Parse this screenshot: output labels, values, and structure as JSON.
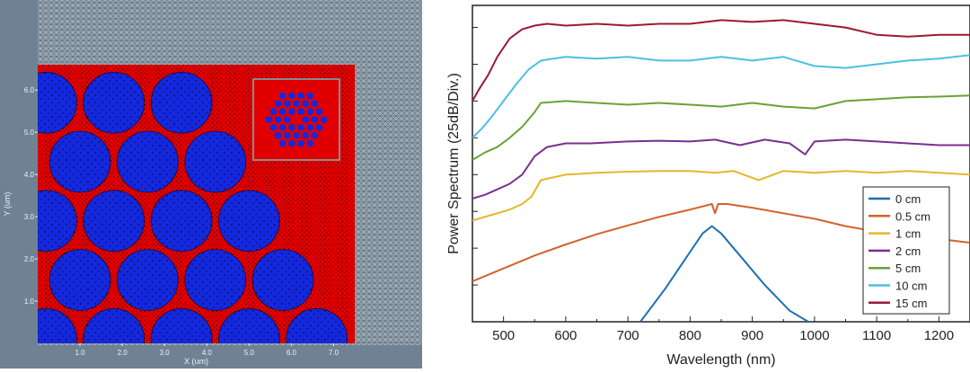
{
  "chart_data": [
    {
      "type": "heatmap",
      "xlabel": "X (um)",
      "ylabel": "Y (um)",
      "x_ticks": [
        "1.0",
        "2.0",
        "3.0",
        "4.0",
        "5.0",
        "6.0",
        "7.0"
      ],
      "y_ticks": [
        "1.0",
        "2.0",
        "3.0",
        "4.0",
        "5.0",
        "6.0"
      ],
      "xlim": [
        0,
        7.5
      ],
      "ylim": [
        0,
        6.6
      ],
      "colors": {
        "background": "#6f8294",
        "mesh": "#9aa8b4",
        "cladding": "#e00000",
        "core": "#1428e0",
        "inset_border": "#8a8a8a"
      },
      "cores_um": [
        {
          "x": 0.2,
          "y": 5.7
        },
        {
          "x": 1.8,
          "y": 5.7
        },
        {
          "x": 3.4,
          "y": 5.7
        },
        {
          "x": 1.0,
          "y": 4.3
        },
        {
          "x": 2.6,
          "y": 4.3
        },
        {
          "x": 4.2,
          "y": 4.3
        },
        {
          "x": 0.2,
          "y": 2.9
        },
        {
          "x": 1.8,
          "y": 2.9
        },
        {
          "x": 3.4,
          "y": 2.9
        },
        {
          "x": 5.0,
          "y": 2.9
        },
        {
          "x": 1.0,
          "y": 1.5
        },
        {
          "x": 2.6,
          "y": 1.5
        },
        {
          "x": 4.2,
          "y": 1.5
        },
        {
          "x": 5.8,
          "y": 1.5
        },
        {
          "x": 0.2,
          "y": 0.1
        },
        {
          "x": 1.8,
          "y": 0.1
        },
        {
          "x": 3.4,
          "y": 0.1
        },
        {
          "x": 5.0,
          "y": 0.1
        },
        {
          "x": 6.6,
          "y": 0.1
        }
      ],
      "core_radius_um": 0.72
    },
    {
      "type": "line",
      "xlabel": "Wavelength (nm)",
      "ylabel": "Power Spectrum (25dB/Div.)",
      "xlim": [
        450,
        1250
      ],
      "ylim": [
        0,
        8.6
      ],
      "x_ticks": [
        500,
        600,
        700,
        800,
        900,
        1000,
        1100,
        1200
      ],
      "legend_position": "bottom-right",
      "series": [
        {
          "name": "0 cm",
          "color": "#1f6fb4",
          "x": [
            720,
            760,
            800,
            820,
            835,
            850,
            880,
            920,
            960,
            990
          ],
          "y": [
            0,
            0.9,
            1.9,
            2.4,
            2.6,
            2.4,
            1.8,
            1.0,
            0.3,
            0
          ]
        },
        {
          "name": "0.5 cm",
          "color": "#d4622a",
          "x": [
            450,
            500,
            550,
            600,
            650,
            700,
            750,
            800,
            835,
            840,
            845,
            860,
            900,
            950,
            1000,
            1050,
            1100,
            1150,
            1200,
            1250
          ],
          "y": [
            1.1,
            1.45,
            1.8,
            2.1,
            2.38,
            2.62,
            2.85,
            3.05,
            3.2,
            2.95,
            3.2,
            3.2,
            3.1,
            2.95,
            2.8,
            2.6,
            2.45,
            2.35,
            2.25,
            2.15
          ]
        },
        {
          "name": "1 cm",
          "color": "#e8b52a",
          "x": [
            450,
            470,
            490,
            510,
            530,
            545,
            560,
            600,
            650,
            700,
            750,
            800,
            840,
            870,
            910,
            950,
            1000,
            1050,
            1100,
            1150,
            1200,
            1250
          ],
          "y": [
            2.75,
            2.85,
            2.95,
            3.05,
            3.2,
            3.4,
            3.85,
            4.0,
            4.05,
            4.08,
            4.1,
            4.1,
            4.05,
            4.1,
            3.85,
            4.1,
            4.05,
            4.1,
            4.05,
            4.1,
            4.05,
            4.0
          ]
        },
        {
          "name": "2 cm",
          "color": "#7b2f8f",
          "x": [
            450,
            470,
            490,
            510,
            530,
            550,
            570,
            600,
            640,
            700,
            750,
            800,
            840,
            880,
            920,
            960,
            985,
            1000,
            1050,
            1100,
            1150,
            1200,
            1250
          ],
          "y": [
            3.35,
            3.45,
            3.6,
            3.75,
            4.0,
            4.5,
            4.75,
            4.85,
            4.85,
            4.9,
            4.92,
            4.9,
            4.95,
            4.8,
            4.95,
            4.85,
            4.55,
            4.9,
            4.95,
            4.9,
            4.85,
            4.8,
            4.8
          ]
        },
        {
          "name": "5 cm",
          "color": "#6aa334",
          "x": [
            450,
            470,
            490,
            510,
            530,
            550,
            560,
            600,
            650,
            700,
            750,
            800,
            850,
            900,
            950,
            1000,
            1050,
            1100,
            1150,
            1200,
            1250
          ],
          "y": [
            4.4,
            4.6,
            4.75,
            5.0,
            5.3,
            5.7,
            5.95,
            6.0,
            5.95,
            5.9,
            5.95,
            5.9,
            5.85,
            5.95,
            5.85,
            5.8,
            6.0,
            6.05,
            6.1,
            6.12,
            6.15
          ]
        },
        {
          "name": "10 cm",
          "color": "#4cc0e4",
          "x": [
            450,
            465,
            480,
            500,
            520,
            540,
            560,
            580,
            600,
            650,
            700,
            750,
            800,
            850,
            900,
            950,
            1000,
            1050,
            1100,
            1150,
            1200,
            1250
          ],
          "y": [
            5.0,
            5.25,
            5.55,
            6.0,
            6.45,
            6.85,
            7.1,
            7.15,
            7.2,
            7.15,
            7.2,
            7.1,
            7.1,
            7.2,
            7.1,
            7.2,
            6.95,
            6.9,
            7.0,
            7.1,
            7.15,
            7.25
          ]
        },
        {
          "name": "15 cm",
          "color": "#9c1a33",
          "x": [
            450,
            460,
            475,
            490,
            510,
            530,
            550,
            570,
            600,
            650,
            700,
            750,
            800,
            850,
            900,
            950,
            1000,
            1050,
            1100,
            1150,
            1200,
            1250
          ],
          "y": [
            6.0,
            6.3,
            6.7,
            7.2,
            7.7,
            7.95,
            8.05,
            8.1,
            8.05,
            8.1,
            8.05,
            8.1,
            8.1,
            8.2,
            8.15,
            8.2,
            8.1,
            8.0,
            7.8,
            7.75,
            7.8,
            7.8
          ]
        }
      ]
    }
  ]
}
